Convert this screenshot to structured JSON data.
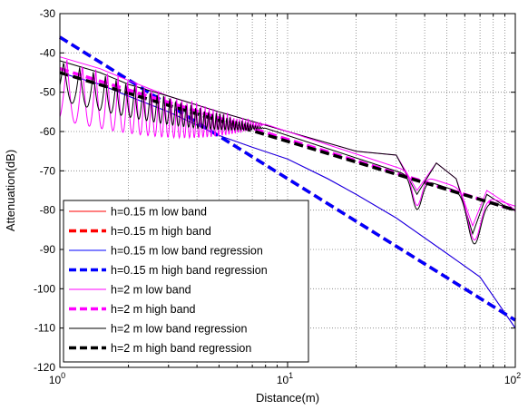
{
  "chart_data": {
    "type": "line",
    "xlabel": "Distance(m)",
    "ylabel": "Attenuation(dB)",
    "xscale": "log",
    "xlim": [
      1,
      100
    ],
    "ylim": [
      -120,
      -30
    ],
    "grid": true,
    "x_ticks": [
      {
        "value": 1,
        "base": "10",
        "exp": "0"
      },
      {
        "value": 10,
        "base": "10",
        "exp": "1"
      },
      {
        "value": 100,
        "base": "10",
        "exp": "2"
      }
    ],
    "y_ticks": [
      "-30",
      "-40",
      "-50",
      "-60",
      "-70",
      "-80",
      "-90",
      "-100",
      "-110",
      "-120"
    ],
    "legend_position": "bottom-left",
    "series": [
      {
        "name": "h=0.15 m low band",
        "color": "#ff0000",
        "style": "solid",
        "x": [
          1,
          1.5,
          2,
          3,
          5,
          7,
          10,
          15,
          20,
          30,
          50,
          70,
          100
        ],
        "y": [
          -45,
          -48,
          -51,
          -55,
          -61,
          -64,
          -67,
          -72,
          -76,
          -82,
          -91,
          -97,
          -110
        ]
      },
      {
        "name": "h=0.15 m high band",
        "color": "#ff0000",
        "style": "dashed",
        "x": [
          1,
          100
        ],
        "y": [
          -36,
          -108
        ]
      },
      {
        "name": "h=0.15 m low band regression",
        "color": "#0000ff",
        "style": "solid",
        "x": [
          1,
          1.5,
          2,
          3,
          5,
          7,
          10,
          15,
          20,
          30,
          50,
          70,
          100
        ],
        "y": [
          -45,
          -48,
          -51,
          -55,
          -61,
          -64,
          -67,
          -72,
          -76,
          -82,
          -91,
          -97,
          -110
        ]
      },
      {
        "name": "h=0.15 m high band regression",
        "color": "#0000ff",
        "style": "dashed",
        "x": [
          1,
          100
        ],
        "y": [
          -36,
          -108
        ]
      },
      {
        "name": "h=2 m low band",
        "color": "#ff00ff",
        "style": "solid",
        "x": [
          1,
          1.5,
          2,
          3,
          5,
          10,
          20,
          30,
          37,
          45,
          55,
          65,
          75,
          90,
          100
        ],
        "y": [
          -41,
          -44,
          -47,
          -51,
          -55,
          -60,
          -65,
          -66,
          -75,
          -68,
          -72,
          -84,
          -75,
          -78,
          -80
        ]
      },
      {
        "name": "h=2 m high band",
        "color": "#ff00ff",
        "style": "dashed",
        "x": [
          1,
          100
        ],
        "y": [
          -44,
          -80
        ]
      },
      {
        "name": "h=2 m low band regression",
        "color": "#000000",
        "style": "solid",
        "x": [
          1,
          1.5,
          2,
          3,
          5,
          10,
          20,
          30,
          37,
          45,
          55,
          65,
          75,
          90,
          100
        ],
        "y": [
          -42,
          -45,
          -48,
          -51,
          -55,
          -60,
          -65,
          -66,
          -76,
          -68,
          -72,
          -86,
          -76,
          -79,
          -80
        ]
      },
      {
        "name": "h=2 m high band regression",
        "color": "#000000",
        "style": "dashed",
        "x": [
          1,
          100
        ],
        "y": [
          -45,
          -80
        ]
      }
    ]
  }
}
